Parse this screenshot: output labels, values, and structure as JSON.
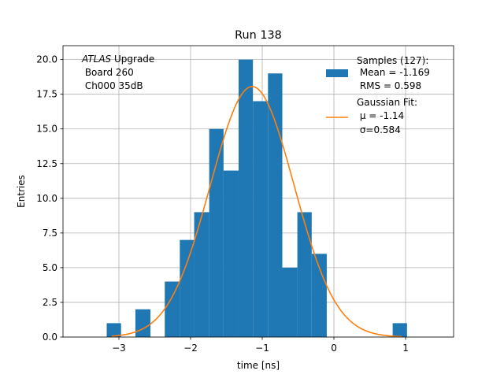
{
  "chart_data": {
    "type": "bar",
    "title": "Run 138",
    "xlabel": "time [ns]",
    "ylabel": "Entries",
    "xlim": [
      -3.78,
      1.67
    ],
    "ylim": [
      0,
      21
    ],
    "grid": true,
    "xticks": [
      -3,
      -2,
      -1,
      0,
      1
    ],
    "xtick_labels": [
      "−3",
      "−2",
      "−1",
      "0",
      "1"
    ],
    "yticks": [
      0,
      2.5,
      5,
      7.5,
      10,
      12.5,
      15,
      17.5,
      20
    ],
    "ytick_labels": [
      "0.0",
      "2.5",
      "5.0",
      "7.5",
      "10.0",
      "12.5",
      "15.0",
      "17.5",
      "20.0"
    ],
    "histogram": {
      "name": "Samples (127):",
      "color": "#1f77b4",
      "bins": [
        {
          "left": -3.17,
          "right": -2.97,
          "count": 1
        },
        {
          "left": -2.97,
          "right": -2.77,
          "count": 0
        },
        {
          "left": -2.77,
          "right": -2.56,
          "count": 2
        },
        {
          "left": -2.56,
          "right": -2.36,
          "count": 0
        },
        {
          "left": -2.36,
          "right": -2.15,
          "count": 4
        },
        {
          "left": -2.15,
          "right": -1.95,
          "count": 7
        },
        {
          "left": -1.95,
          "right": -1.74,
          "count": 9
        },
        {
          "left": -1.74,
          "right": -1.54,
          "count": 15
        },
        {
          "left": -1.54,
          "right": -1.33,
          "count": 12
        },
        {
          "left": -1.33,
          "right": -1.13,
          "count": 20
        },
        {
          "left": -1.13,
          "right": -0.92,
          "count": 17
        },
        {
          "left": -0.92,
          "right": -0.72,
          "count": 19
        },
        {
          "left": -0.72,
          "right": -0.51,
          "count": 5
        },
        {
          "left": -0.51,
          "right": -0.31,
          "count": 9
        },
        {
          "left": -0.31,
          "right": -0.1,
          "count": 6
        },
        {
          "left": 0.82,
          "right": 1.02,
          "count": 1
        }
      ]
    },
    "fit": {
      "name": "Gaussian Fit:",
      "color": "#ff7f0e",
      "mu": -1.14,
      "sigma": 0.584,
      "amplitude": 18.05,
      "x_range": [
        -3.1,
        0.95
      ]
    },
    "legend": {
      "placement": "upper-right",
      "hist_lines": [
        "Samples (127):",
        " Mean = -1.169",
        " RMS = 0.598"
      ],
      "fit_lines": [
        "Gaussian Fit:",
        " μ = -1.14",
        " σ=0.584"
      ]
    },
    "annotation": {
      "placement": "upper-left",
      "italic_word": "ATLAS",
      "line1_rest": " Upgrade",
      "lines": [
        " Board 260",
        " Ch000 35dB"
      ]
    }
  }
}
